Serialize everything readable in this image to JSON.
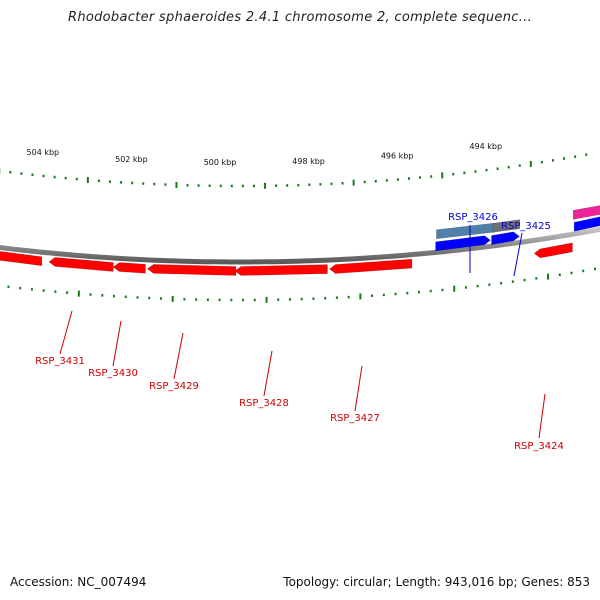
{
  "title": "Rhodobacter sphaeroides 2.4.1 chromosome 2, complete sequenc...",
  "footer": {
    "accession": "Accession: NC_007494",
    "summary": "Topology: circular; Length: 943,016 bp; Genes: 853"
  },
  "colors": {
    "forward_gene": "#0000ff",
    "reverse_gene": "#ff0000",
    "feature_label_reverse": "#cc0000",
    "feature_label_forward": "#0000cc",
    "tick": "#1a7a1a",
    "backbone": "#8c8c8c",
    "pink_gene": "#ee2299",
    "steel_feature": "#5080a8",
    "gray_feature": "#707070"
  },
  "scale_labels": [
    "504 kbp",
    "502 kbp",
    "500 kbp",
    "498 kbp",
    "496 kbp",
    "494 kbp"
  ],
  "genes": [
    {
      "label": "RSP_3431",
      "strand": "reverse"
    },
    {
      "label": "RSP_3430",
      "strand": "reverse"
    },
    {
      "label": "RSP_3429",
      "strand": "reverse"
    },
    {
      "label": "RSP_3428",
      "strand": "reverse"
    },
    {
      "label": "RSP_3427",
      "strand": "reverse"
    },
    {
      "label": "RSP_3426",
      "strand": "forward"
    },
    {
      "label": "RSP_3425",
      "strand": "forward"
    },
    {
      "label": "RSP_3424",
      "strand": "reverse"
    }
  ]
}
